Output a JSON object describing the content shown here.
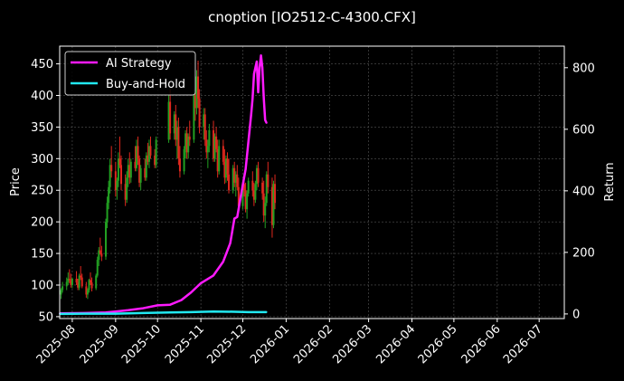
{
  "chart_data": {
    "type": "candlestick+line",
    "title": "cnoption [IO2512-C-4300.CFX]",
    "xlabel": "",
    "ylabel": "Price",
    "ylabel_right": "Return",
    "ylim": [
      47,
      478
    ],
    "ylim_right": [
      -15,
      870
    ],
    "xlim": [
      "2025-07-23",
      "2026-07-19"
    ],
    "yticks": [
      50,
      100,
      150,
      200,
      250,
      300,
      350,
      400,
      450
    ],
    "yticks_right": [
      0,
      200,
      400,
      600,
      800
    ],
    "xticks": [
      "2025-08",
      "2025-09",
      "2025-10",
      "2025-11",
      "2025-12",
      "2026-01",
      "2026-02",
      "2026-03",
      "2026-04",
      "2026-05",
      "2026-06",
      "2026-07"
    ],
    "grid": true,
    "legend_position": "top-left",
    "colors": {
      "up": "#22a022",
      "down": "#e0281e",
      "ai": "#ff1aff",
      "bh": "#22e8f0",
      "grid": "#555555"
    },
    "series": [
      {
        "name": "AI Strategy",
        "axis": "right",
        "x": [
          "2025-07-23",
          "2025-08-10",
          "2025-08-25",
          "2025-09-01",
          "2025-09-10",
          "2025-09-20",
          "2025-10-01",
          "2025-10-10",
          "2025-10-18",
          "2025-10-25",
          "2025-11-01",
          "2025-11-10",
          "2025-11-17",
          "2025-11-22",
          "2025-11-25",
          "2025-11-27",
          "2025-12-01",
          "2025-12-03",
          "2025-12-05",
          "2025-12-07",
          "2025-12-08",
          "2025-12-09",
          "2025-12-10",
          "2025-12-11",
          "2025-12-12",
          "2025-12-13",
          "2025-12-14",
          "2025-12-15",
          "2025-12-16",
          "2025-12-17",
          "2025-12-18"
        ],
        "values": [
          2,
          3,
          5,
          8,
          12,
          18,
          28,
          30,
          45,
          70,
          100,
          125,
          170,
          230,
          310,
          315,
          420,
          470,
          560,
          650,
          700,
          780,
          800,
          820,
          720,
          800,
          840,
          800,
          700,
          630,
          620
        ]
      },
      {
        "name": "Buy-and-Hold",
        "axis": "right",
        "x": [
          "2025-07-23",
          "2025-08-10",
          "2025-09-01",
          "2025-09-20",
          "2025-10-10",
          "2025-10-25",
          "2025-11-10",
          "2025-11-25",
          "2025-12-05",
          "2025-12-18"
        ],
        "values": [
          0,
          1,
          1,
          3,
          5,
          6,
          8,
          7,
          6,
          6
        ]
      }
    ],
    "candles": {
      "columns": [
        "date",
        "open",
        "high",
        "low",
        "close"
      ],
      "rows": [
        [
          "2025-07-24",
          85,
          95,
          78,
          92
        ],
        [
          "2025-07-25",
          92,
          105,
          88,
          98
        ],
        [
          "2025-07-28",
          98,
          112,
          92,
          105
        ],
        [
          "2025-07-29",
          105,
          120,
          100,
          110
        ],
        [
          "2025-07-30",
          110,
          125,
          103,
          108
        ],
        [
          "2025-07-31",
          108,
          118,
          96,
          100
        ],
        [
          "2025-08-01",
          100,
          112,
          95,
          110
        ],
        [
          "2025-08-04",
          110,
          122,
          100,
          104
        ],
        [
          "2025-08-05",
          104,
          110,
          92,
          96
        ],
        [
          "2025-08-06",
          96,
          118,
          92,
          115
        ],
        [
          "2025-08-07",
          115,
          130,
          108,
          112
        ],
        [
          "2025-08-08",
          112,
          118,
          95,
          98
        ],
        [
          "2025-08-11",
          98,
          105,
          80,
          85
        ],
        [
          "2025-08-12",
          85,
          95,
          78,
          92
        ],
        [
          "2025-08-13",
          92,
          110,
          88,
          108
        ],
        [
          "2025-08-14",
          108,
          120,
          100,
          104
        ],
        [
          "2025-08-15",
          104,
          112,
          90,
          95
        ],
        [
          "2025-08-18",
          95,
          118,
          92,
          115
        ],
        [
          "2025-08-19",
          115,
          145,
          112,
          140
        ],
        [
          "2025-08-20",
          140,
          160,
          130,
          155
        ],
        [
          "2025-08-21",
          155,
          175,
          148,
          150
        ],
        [
          "2025-08-22",
          150,
          162,
          138,
          145
        ],
        [
          "2025-08-25",
          145,
          205,
          140,
          200
        ],
        [
          "2025-08-26",
          200,
          240,
          190,
          230
        ],
        [
          "2025-08-27",
          230,
          265,
          220,
          255
        ],
        [
          "2025-08-28",
          255,
          300,
          245,
          290
        ],
        [
          "2025-08-29",
          290,
          320,
          270,
          280
        ],
        [
          "2025-09-01",
          280,
          295,
          240,
          250
        ],
        [
          "2025-09-02",
          250,
          270,
          235,
          265
        ],
        [
          "2025-09-03",
          265,
          310,
          255,
          300
        ],
        [
          "2025-09-04",
          300,
          335,
          285,
          290
        ],
        [
          "2025-09-05",
          290,
          305,
          250,
          260
        ],
        [
          "2025-09-08",
          260,
          275,
          225,
          235
        ],
        [
          "2025-09-09",
          235,
          280,
          230,
          270
        ],
        [
          "2025-09-10",
          270,
          300,
          255,
          290
        ],
        [
          "2025-09-11",
          290,
          310,
          260,
          270
        ],
        [
          "2025-09-12",
          270,
          300,
          262,
          295
        ],
        [
          "2025-09-15",
          295,
          320,
          280,
          285
        ],
        [
          "2025-09-16",
          285,
          330,
          280,
          320
        ],
        [
          "2025-09-17",
          320,
          335,
          290,
          300
        ],
        [
          "2025-09-18",
          300,
          305,
          255,
          262
        ],
        [
          "2025-09-19",
          262,
          290,
          250,
          285
        ],
        [
          "2025-09-22",
          285,
          300,
          265,
          270
        ],
        [
          "2025-09-23",
          270,
          310,
          265,
          305
        ],
        [
          "2025-09-24",
          305,
          325,
          290,
          295
        ],
        [
          "2025-09-25",
          295,
          330,
          285,
          320
        ],
        [
          "2025-09-26",
          320,
          335,
          300,
          305
        ],
        [
          "2025-09-29",
          305,
          315,
          285,
          290
        ],
        [
          "2025-09-30",
          290,
          335,
          285,
          330
        ],
        [
          "2025-10-09",
          330,
          400,
          325,
          390
        ],
        [
          "2025-10-10",
          390,
          410,
          330,
          340
        ],
        [
          "2025-10-13",
          340,
          375,
          330,
          370
        ],
        [
          "2025-10-14",
          370,
          385,
          320,
          330
        ],
        [
          "2025-10-15",
          330,
          360,
          300,
          350
        ],
        [
          "2025-10-16",
          350,
          365,
          290,
          300
        ],
        [
          "2025-10-17",
          300,
          320,
          270,
          280
        ],
        [
          "2025-10-20",
          280,
          320,
          275,
          315
        ],
        [
          "2025-10-21",
          315,
          345,
          300,
          340
        ],
        [
          "2025-10-22",
          340,
          350,
          300,
          310
        ],
        [
          "2025-10-23",
          310,
          340,
          300,
          335
        ],
        [
          "2025-10-24",
          335,
          360,
          320,
          330
        ],
        [
          "2025-10-27",
          330,
          410,
          325,
          400
        ],
        [
          "2025-10-28",
          400,
          420,
          360,
          380
        ],
        [
          "2025-10-29",
          380,
          440,
          370,
          430
        ],
        [
          "2025-10-30",
          430,
          455,
          380,
          395
        ],
        [
          "2025-10-31",
          395,
          410,
          340,
          350
        ],
        [
          "2025-11-03",
          350,
          380,
          330,
          370
        ],
        [
          "2025-11-04",
          370,
          380,
          320,
          330
        ],
        [
          "2025-11-05",
          330,
          345,
          300,
          310
        ],
        [
          "2025-11-06",
          310,
          330,
          285,
          320
        ],
        [
          "2025-11-07",
          320,
          355,
          310,
          345
        ],
        [
          "2025-11-10",
          345,
          360,
          295,
          300
        ],
        [
          "2025-11-11",
          300,
          340,
          295,
          335
        ],
        [
          "2025-11-12",
          335,
          350,
          310,
          315
        ],
        [
          "2025-11-13",
          315,
          330,
          270,
          280
        ],
        [
          "2025-11-14",
          280,
          330,
          275,
          320
        ],
        [
          "2025-11-17",
          320,
          330,
          290,
          295
        ],
        [
          "2025-11-18",
          295,
          315,
          260,
          270
        ],
        [
          "2025-11-19",
          270,
          305,
          262,
          300
        ],
        [
          "2025-11-20",
          300,
          310,
          265,
          275
        ],
        [
          "2025-11-21",
          275,
          300,
          245,
          250
        ],
        [
          "2025-11-24",
          250,
          290,
          245,
          285
        ],
        [
          "2025-11-25",
          285,
          295,
          255,
          262
        ],
        [
          "2025-11-26",
          262,
          280,
          240,
          275
        ],
        [
          "2025-11-27",
          275,
          290,
          250,
          255
        ],
        [
          "2025-11-28",
          255,
          270,
          215,
          225
        ],
        [
          "2025-12-01",
          225,
          265,
          220,
          260
        ],
        [
          "2025-12-02",
          260,
          275,
          240,
          250
        ],
        [
          "2025-12-03",
          250,
          262,
          215,
          220
        ],
        [
          "2025-12-04",
          220,
          250,
          205,
          245
        ],
        [
          "2025-12-05",
          245,
          270,
          240,
          265
        ],
        [
          "2025-12-08",
          265,
          280,
          240,
          250
        ],
        [
          "2025-12-09",
          250,
          262,
          225,
          235
        ],
        [
          "2025-12-10",
          235,
          265,
          230,
          260
        ],
        [
          "2025-12-11",
          260,
          290,
          250,
          285
        ],
        [
          "2025-12-12",
          285,
          295,
          255,
          262
        ],
        [
          "2025-12-15",
          262,
          270,
          235,
          245
        ],
        [
          "2025-12-16",
          245,
          265,
          200,
          210
        ],
        [
          "2025-12-17",
          210,
          240,
          190,
          230
        ],
        [
          "2025-12-18",
          230,
          280,
          225,
          275
        ],
        [
          "2025-12-19",
          275,
          295,
          245,
          255
        ],
        [
          "2025-12-22",
          255,
          270,
          175,
          195
        ],
        [
          "2025-12-23",
          195,
          265,
          190,
          260
        ],
        [
          "2025-12-24",
          260,
          275,
          220,
          230
        ]
      ]
    }
  }
}
